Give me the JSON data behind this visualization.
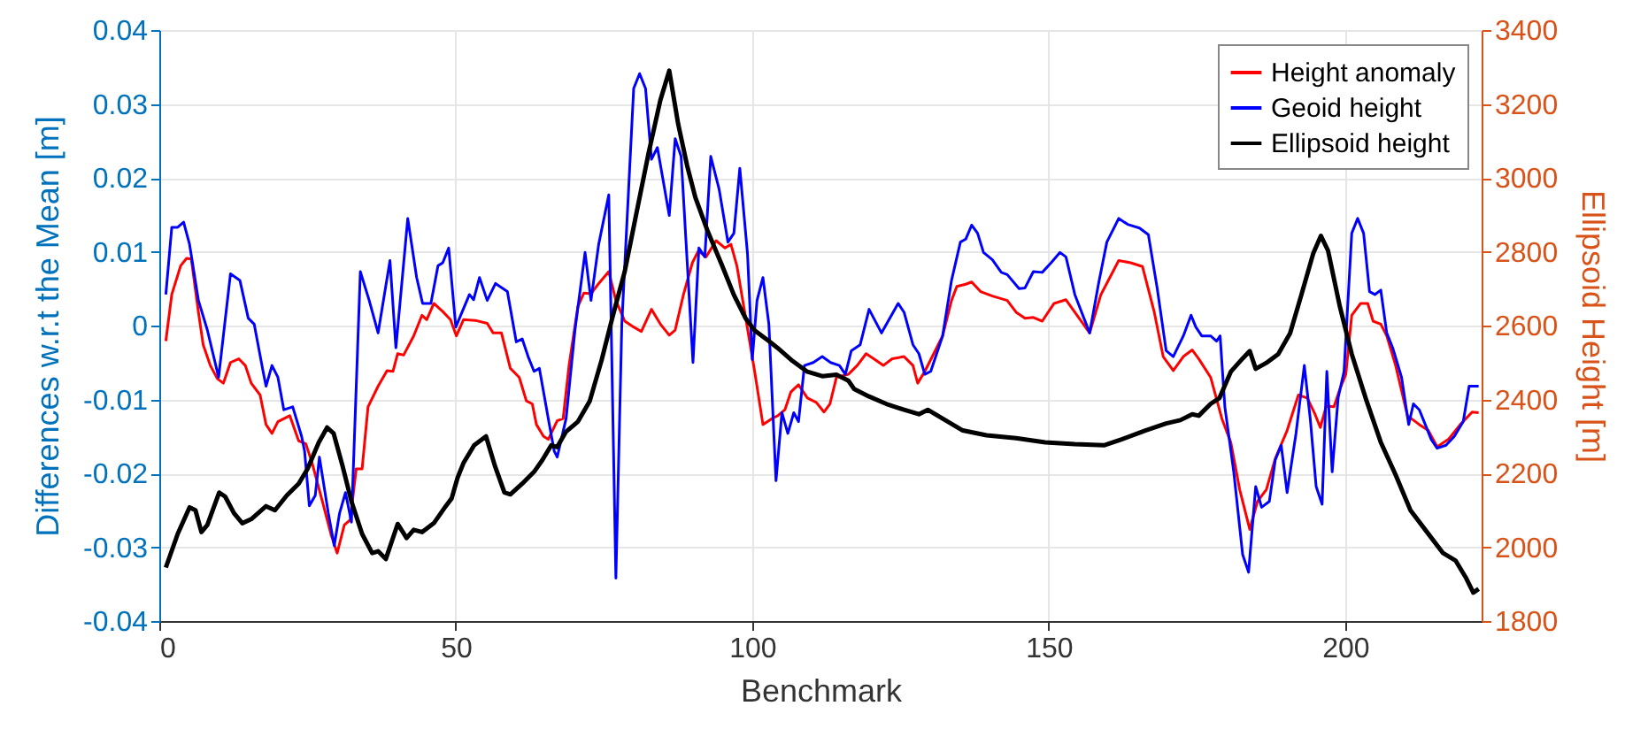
{
  "chart_data": {
    "type": "line",
    "xlabel": "Benchmark",
    "ylabel": "Differences w.r.t the Mean [m]",
    "y2label": "Ellipsoid Height [m]",
    "xlim": [
      0,
      223
    ],
    "xticks": [
      0,
      50,
      100,
      150,
      200
    ],
    "ylim": [
      -0.04,
      0.04
    ],
    "yticks": [
      -0.04,
      -0.03,
      -0.02,
      -0.01,
      0,
      0.01,
      0.02,
      0.03,
      0.04
    ],
    "y2lim": [
      1800,
      3400
    ],
    "y2ticks": [
      1800,
      2000,
      2200,
      2400,
      2600,
      2800,
      3000,
      3200,
      3400
    ],
    "grid": true,
    "legend": "top right",
    "line_style": "solid",
    "series": [
      {
        "name": "Height anomaly",
        "color": "#ff0000",
        "x": [
          1.1,
          2.1,
          3.6,
          4.6,
          5.4,
          6.6,
          7.4,
          8.6,
          9.8,
          10.8,
          12,
          13.4,
          14.5,
          15.5,
          17,
          18,
          19,
          20,
          22,
          23.5,
          24.7,
          25.7,
          27.5,
          29,
          30,
          31.2,
          32.2,
          33.2,
          34.2,
          35.2,
          36.9,
          38.4,
          39.4,
          40.2,
          41.2,
          42.9,
          44.3,
          45.1,
          46.3,
          47.8,
          49.1,
          50.1,
          51.3,
          53.3,
          55.3,
          56.3,
          57.7,
          59.2,
          60.7,
          61.9,
          62.9,
          63.6,
          64.8,
          65.6,
          67.1,
          68.1,
          69.1,
          70.6,
          71.6,
          72.8,
          74.1,
          75.8,
          77,
          78.5,
          80,
          81.3,
          83,
          84.5,
          86,
          87,
          88.4,
          89.9,
          90.9,
          92.2,
          93.9,
          95.4,
          96.4,
          97.4,
          98.9,
          100.4,
          101.8,
          103.3,
          104.3,
          105.5,
          106.5,
          107.8,
          109.3,
          110.8,
          112.1,
          113.1,
          114.2,
          116.2,
          117.7,
          119.2,
          120.7,
          122.1,
          123.6,
          125.6,
          127.1,
          127.9,
          129.1,
          130.6,
          132.1,
          133.6,
          134.5,
          136,
          137,
          138.5,
          140.5,
          143,
          144.5,
          146,
          147.4,
          148.9,
          150.9,
          152.9,
          154.4,
          156.9,
          158.8,
          161.8,
          163.8,
          165.8,
          167.8,
          169.3,
          171,
          172.7,
          174.2,
          175.3,
          177.3,
          179.2,
          180.7,
          182.2,
          183.9,
          185.2,
          186.7,
          188.2,
          190.2,
          192.1,
          193.6,
          194.8,
          195.8,
          196.8,
          198.1,
          199.1,
          200.1,
          201.1,
          202.6,
          203.8,
          204.7,
          206,
          207,
          208.5,
          210.5,
          212.5,
          214,
          215.5,
          217.4,
          219.4,
          221.4,
          222.5
        ],
        "values": [
          -0.0021,
          0.0042,
          0.0081,
          0.0091,
          0.009,
          0.0018,
          -0.0026,
          -0.0054,
          -0.0072,
          -0.0078,
          -0.005,
          -0.0045,
          -0.0054,
          -0.0078,
          -0.0094,
          -0.0134,
          -0.0146,
          -0.013,
          -0.0122,
          -0.0156,
          -0.016,
          -0.0184,
          -0.0238,
          -0.0284,
          -0.0308,
          -0.027,
          -0.0263,
          -0.0194,
          -0.0194,
          -0.011,
          -0.0082,
          -0.0061,
          -0.0062,
          -0.0038,
          -0.004,
          -0.0014,
          0.0014,
          0.0008,
          0.003,
          0.0019,
          0.0008,
          -0.0014,
          0.0008,
          0.0007,
          0.0003,
          -0.001,
          -0.001,
          -0.0058,
          -0.007,
          -0.0102,
          -0.0106,
          -0.0134,
          -0.015,
          -0.0154,
          -0.0129,
          -0.0126,
          -0.0054,
          0.0026,
          0.0044,
          0.0043,
          0.0057,
          0.0073,
          0.0034,
          0.0006,
          -0.0002,
          -0.0008,
          0.0022,
          0.0002,
          -0.0013,
          -0.0006,
          0.0042,
          0.0085,
          0.0101,
          0.0093,
          0.0115,
          0.0105,
          0.011,
          0.0081,
          0.001,
          -0.0062,
          -0.0134,
          -0.0126,
          -0.0122,
          -0.0114,
          -0.009,
          -0.008,
          -0.0098,
          -0.0104,
          -0.0117,
          -0.0106,
          -0.007,
          -0.0066,
          -0.0054,
          -0.0038,
          -0.0046,
          -0.0054,
          -0.0045,
          -0.0042,
          -0.0054,
          -0.0078,
          -0.0062,
          -0.0038,
          -0.0014,
          0.0034,
          0.0053,
          0.0056,
          0.0059,
          0.0046,
          0.004,
          0.0034,
          0.0018,
          0.001,
          0.0011,
          0.0006,
          0.003,
          0.0035,
          0.0018,
          -0.001,
          0.0042,
          0.0088,
          0.0085,
          0.008,
          0.0018,
          -0.0042,
          -0.0061,
          -0.0042,
          -0.0033,
          -0.0045,
          -0.007,
          -0.0126,
          -0.0158,
          -0.0222,
          -0.0276,
          -0.0238,
          -0.0222,
          -0.018,
          -0.0142,
          -0.0094,
          -0.0098,
          -0.0118,
          -0.0138,
          -0.0109,
          -0.011,
          -0.0086,
          -0.0066,
          0.0014,
          0.003,
          0.003,
          0.0006,
          0.0002,
          -0.0014,
          -0.0054,
          -0.0122,
          -0.0134,
          -0.0142,
          -0.0164,
          -0.0154,
          -0.0134,
          -0.0117,
          -0.0118
        ]
      },
      {
        "name": "Geoid height",
        "color": "#0000ff",
        "x": [
          1.1,
          2.1,
          3.1,
          4.1,
          5.1,
          6.6,
          8.1,
          10,
          12,
          13.6,
          15,
          16,
          17.5,
          18,
          19,
          20,
          21,
          22.5,
          24,
          24.5,
          25.3,
          26.3,
          27,
          28.5,
          29.5,
          30.4,
          31.4,
          32.4,
          33.9,
          35.4,
          36.9,
          38.9,
          39.9,
          41.9,
          43.4,
          44.4,
          45.8,
          47,
          47.8,
          48.8,
          50,
          52.3,
          53,
          54,
          55.3,
          56.7,
          58.7,
          60.2,
          61.2,
          62.2,
          63.2,
          64.1,
          65.6,
          66.6,
          67.1,
          68.6,
          70.1,
          71.8,
          72.8,
          74.1,
          75.8,
          77,
          78,
          80,
          81,
          82,
          83,
          84,
          86,
          87,
          88,
          90,
          91,
          92,
          93,
          94.4,
          95.9,
          96.9,
          97.9,
          99.2,
          100,
          100.8,
          101.8,
          102.8,
          104,
          105,
          106,
          107,
          107.8,
          108.8,
          110.3,
          111.8,
          113.2,
          114.7,
          115.7,
          116.7,
          118.2,
          119.7,
          121.8,
          124.6,
          125.6,
          127.1,
          128.1,
          129.1,
          130.1,
          132.1,
          133.6,
          135.1,
          136,
          137,
          138,
          139,
          140.5,
          142,
          143,
          145,
          146,
          147.4,
          148.9,
          150.4,
          151.9,
          152.9,
          154.4,
          156.9,
          158.4,
          159.8,
          161.8,
          163.3,
          165.3,
          166.8,
          168.3,
          169.8,
          171,
          172.7,
          174,
          174.8,
          175.8,
          177.3,
          178.3,
          178.9,
          179.7,
          181.2,
          182.7,
          183.7,
          184.9,
          185.9,
          187.2,
          188.2,
          189.2,
          190.2,
          191.7,
          193.1,
          194.1,
          195.1,
          196.1,
          196.9,
          197.8,
          198.8,
          199.8,
          201.1,
          202.1,
          203.1,
          204.1,
          205,
          206,
          207,
          208,
          209.5,
          210.7,
          211.5,
          212.5,
          213.5,
          214.5,
          215.5,
          217,
          218.4,
          219.9,
          220.9,
          222.5
        ],
        "values": [
          0.0042,
          0.0133,
          0.0133,
          0.014,
          0.011,
          0.0034,
          -0.0006,
          -0.007,
          0.007,
          0.0061,
          0.001,
          0.0002,
          -0.0062,
          -0.0082,
          -0.0054,
          -0.007,
          -0.0114,
          -0.011,
          -0.015,
          -0.017,
          -0.0244,
          -0.023,
          -0.0178,
          -0.0254,
          -0.0298,
          -0.0254,
          -0.0226,
          -0.0266,
          0.0073,
          0.0034,
          -0.001,
          0.0088,
          -0.003,
          0.0145,
          0.0065,
          0.003,
          0.003,
          0.0081,
          0.0085,
          0.0105,
          -0.0002,
          0.0042,
          0.0035,
          0.0065,
          0.0034,
          0.0057,
          0.0046,
          -0.0022,
          -0.0018,
          -0.0042,
          -0.0062,
          -0.0058,
          -0.0126,
          -0.017,
          -0.0178,
          -0.0126,
          -0.0006,
          0.0099,
          0.0034,
          0.011,
          0.0177,
          -0.0342,
          0.0002,
          0.0321,
          0.0341,
          0.0321,
          0.0225,
          0.0241,
          0.0149,
          0.0253,
          0.0229,
          -0.005,
          0.0105,
          0.0093,
          0.0229,
          0.0185,
          0.0113,
          0.0125,
          0.0213,
          0.0097,
          -0.0046,
          0.0034,
          0.0065,
          0.0002,
          -0.021,
          -0.0118,
          -0.0146,
          -0.0118,
          -0.013,
          -0.0054,
          -0.005,
          -0.0042,
          -0.005,
          -0.0054,
          -0.0066,
          -0.0034,
          -0.0026,
          0.0022,
          -0.001,
          0.003,
          0.0018,
          -0.0026,
          -0.0038,
          -0.0066,
          -0.0062,
          -0.0014,
          0.0061,
          0.0113,
          0.0117,
          0.0136,
          0.0125,
          0.0099,
          0.0089,
          0.0072,
          0.0069,
          0.005,
          0.0051,
          0.0073,
          0.0072,
          0.0085,
          0.0099,
          0.0093,
          0.0042,
          -0.001,
          0.0057,
          0.0113,
          0.0145,
          0.0137,
          0.0132,
          0.0123,
          0.005,
          -0.0034,
          -0.0042,
          -0.0014,
          0.0014,
          -0.0002,
          -0.0014,
          -0.0014,
          -0.0021,
          -0.0014,
          -0.011,
          -0.0198,
          -0.031,
          -0.0334,
          -0.0218,
          -0.0246,
          -0.0238,
          -0.0182,
          -0.0162,
          -0.0226,
          -0.0146,
          -0.0054,
          -0.0126,
          -0.0218,
          -0.0242,
          -0.0062,
          -0.0198,
          -0.0098,
          -0.0062,
          0.0125,
          0.0145,
          0.0125,
          0.0046,
          0.0042,
          0.0048,
          -0.001,
          -0.003,
          -0.007,
          -0.0134,
          -0.0106,
          -0.0114,
          -0.0134,
          -0.0154,
          -0.0166,
          -0.0162,
          -0.015,
          -0.013,
          -0.0082,
          -0.0082
        ]
      },
      {
        "name": "Ellipsoid height",
        "color": "#000000",
        "axis": "y2",
        "x": [
          1.1,
          3.1,
          5.1,
          6.1,
          7.1,
          8.1,
          10.1,
          11.1,
          12.6,
          14,
          15.5,
          18,
          19.5,
          21.5,
          23.5,
          25,
          26.9,
          28.3,
          29.4,
          30.9,
          32.4,
          34.2,
          35.9,
          36.9,
          38.2,
          40.2,
          41.7,
          42.9,
          44.3,
          46.3,
          48.3,
          49.3,
          50.3,
          51.3,
          53.1,
          55.1,
          56.6,
          58.2,
          59.2,
          61.2,
          63.2,
          64.6,
          66.1,
          67.1,
          68.6,
          70.6,
          72.6,
          74.6,
          76.5,
          78.5,
          80.5,
          82.5,
          84.5,
          86,
          87.5,
          89,
          90.4,
          92.4,
          94.9,
          96.9,
          98.9,
          100.4,
          102.8,
          104.3,
          106.8,
          109.3,
          111.8,
          114.2,
          116.2,
          117.2,
          119.7,
          122.6,
          125.6,
          128.1,
          129.6,
          132.1,
          135.5,
          139.5,
          144.5,
          149.4,
          154.4,
          159.3,
          162.3,
          166.3,
          169.8,
          172.2,
          174.2,
          175.3,
          177.3,
          178.8,
          180.7,
          182.7,
          183.9,
          184.9,
          186.7,
          188.7,
          190.7,
          192.6,
          194.6,
          195.9,
          197.1,
          199.1,
          201.1,
          203.6,
          206,
          208.5,
          211,
          213.5,
          216.5,
          218.6,
          220.4,
          221.6,
          222.5
        ],
        "values": [
          1945,
          2036,
          2108,
          2100,
          2041,
          2060,
          2148,
          2137,
          2092,
          2065,
          2076,
          2111,
          2100,
          2140,
          2172,
          2212,
          2284,
          2324,
          2308,
          2220,
          2124,
          2036,
          1984,
          1989,
          1968,
          2063,
          2025,
          2047,
          2041,
          2065,
          2111,
          2132,
          2188,
          2228,
          2276,
          2300,
          2220,
          2148,
          2143,
          2172,
          2204,
          2236,
          2276,
          2271,
          2313,
          2340,
          2396,
          2507,
          2627,
          2747,
          2907,
          3066,
          3210,
          3290,
          3146,
          3034,
          2947,
          2859,
          2763,
          2683,
          2619,
          2587,
          2558,
          2539,
          2504,
          2475,
          2463,
          2467,
          2451,
          2428,
          2408,
          2388,
          2372,
          2360,
          2372,
          2348,
          2316,
          2303,
          2295,
          2284,
          2279,
          2276,
          2292,
          2316,
          2335,
          2344,
          2360,
          2356,
          2388,
          2404,
          2475,
          2511,
          2531,
          2483,
          2499,
          2523,
          2579,
          2683,
          2795,
          2843,
          2803,
          2651,
          2523,
          2396,
          2284,
          2196,
          2100,
          2047,
          1984,
          1964,
          1916,
          1877,
          1887
        ]
      }
    ]
  }
}
